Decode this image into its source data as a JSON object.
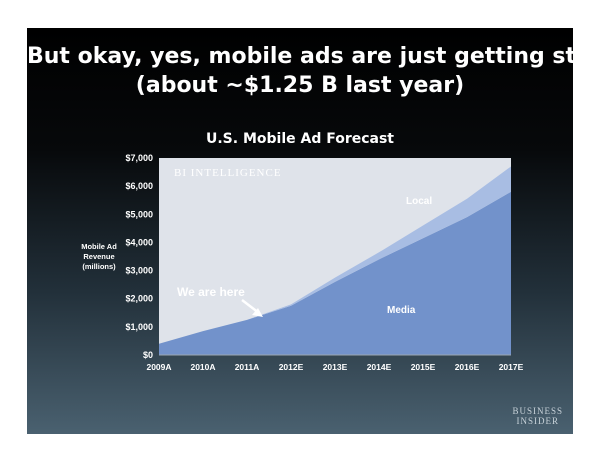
{
  "slide": {
    "headline_line1": "But okay, yes, mobile ads are just getting started",
    "headline_line2": "(about ~$1.25 B last year)",
    "watermark_line1": "BUSINESS",
    "watermark_line2": "INSIDER"
  },
  "colors": {
    "media": "#7292cb",
    "local": "#a8bde3",
    "plot_bg": "#dfe3ea",
    "text": "#ffffff"
  },
  "chart_data": {
    "type": "area",
    "title": "U.S. Mobile Ad Forecast",
    "ylabel": "Mobile Ad Revenue (millions)",
    "xlabel": "",
    "categories": [
      "2009A",
      "2010A",
      "2011A",
      "2012E",
      "2013E",
      "2014E",
      "2015E",
      "2016E",
      "2017E"
    ],
    "series": [
      {
        "name": "Media",
        "values": [
          400,
          850,
          1250,
          1750,
          2600,
          3400,
          4150,
          4900,
          5800
        ]
      },
      {
        "name": "Local",
        "values": [
          0,
          0,
          0,
          50,
          150,
          250,
          450,
          650,
          900
        ]
      }
    ],
    "stacked": true,
    "ylim": [
      0,
      7000
    ],
    "yticks": [
      "$0",
      "$1,000",
      "$2,000",
      "$3,000",
      "$4,000",
      "$5,000",
      "$6,000",
      "$7,000"
    ],
    "ytick_values": [
      0,
      1000,
      2000,
      3000,
      4000,
      5000,
      6000,
      7000
    ],
    "grid": false,
    "plot_logo": "BI INTELLIGENCE",
    "annotations": {
      "we_are_here": "We are here",
      "local_label": "Local",
      "media_label": "Media"
    }
  }
}
